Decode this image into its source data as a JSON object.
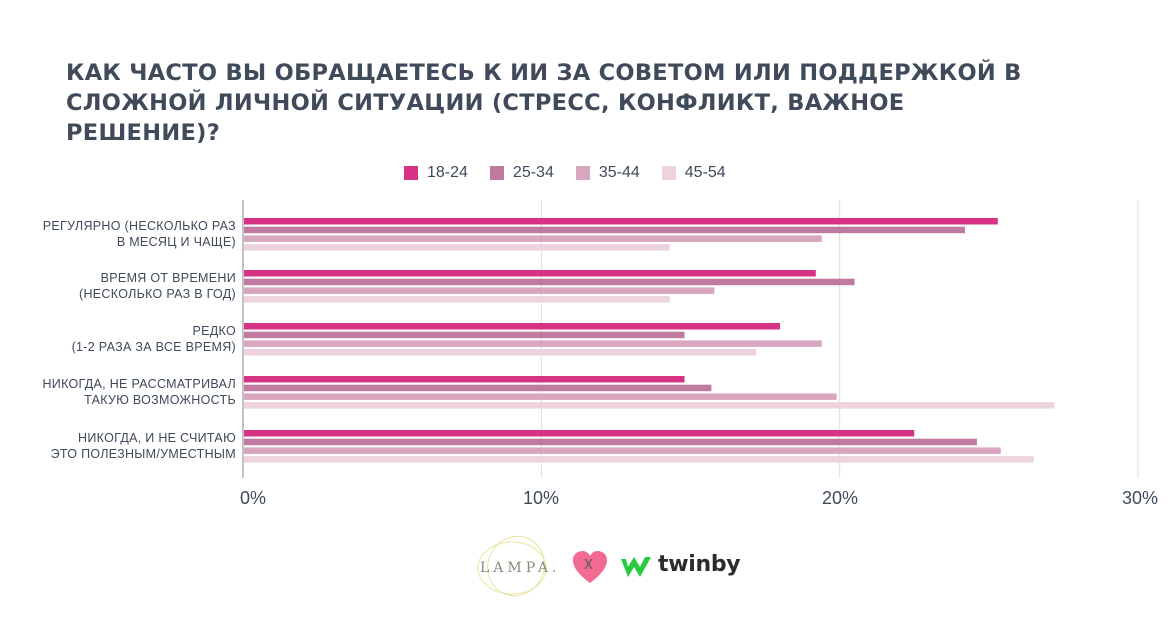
{
  "title_lines": [
    "КАК ЧАСТО ВЫ ОБРАЩАЕТЕСЬ К ИИ ЗА СОВЕТОМ ИЛИ ПОДДЕРЖКОЙ В",
    "СЛОЖНОЙ ЛИЧНОЙ СИТУАЦИИ (СТРЕСС, КОНФЛИКТ, ВАЖНОЕ РЕШЕНИЕ)?"
  ],
  "colors": {
    "text": "#3f4a5a",
    "grid": "#dcdcdc",
    "series": [
      "#d63384",
      "#c17a9f",
      "#d9a6c0",
      "#edd3de"
    ]
  },
  "chart_data": {
    "type": "bar",
    "orientation": "horizontal",
    "categories": [
      [
        "РЕГУЛЯРНО (НЕСКОЛЬКО РАЗ",
        "В МЕСЯЦ И ЧАЩЕ)"
      ],
      [
        "ВРЕМЯ ОТ ВРЕМЕНИ",
        "(НЕСКОЛЬКО РАЗ В ГОД)"
      ],
      [
        "РЕДКО",
        "(1-2 РАЗА ЗА ВСЕ ВРЕМЯ)"
      ],
      [
        "НИКОГДА, НЕ РАССМАТРИВАЛ",
        "ТАКУЮ ВОЗМОЖНОСТЬ"
      ],
      [
        "НИКОГДА, И НЕ СЧИТАЮ",
        "ЭТО ПОЛЕЗНЫМ/УМЕСТНЫМ"
      ]
    ],
    "series": [
      {
        "name": "18-24",
        "values": [
          25.3,
          19.2,
          18.0,
          14.8,
          22.5
        ]
      },
      {
        "name": "25-34",
        "values": [
          24.2,
          20.5,
          14.8,
          15.7,
          24.6
        ]
      },
      {
        "name": "35-44",
        "values": [
          19.4,
          15.8,
          19.4,
          19.9,
          25.4
        ]
      },
      {
        "name": "45-54",
        "values": [
          14.3,
          14.3,
          17.2,
          27.2,
          26.5
        ]
      }
    ],
    "xlim": [
      0,
      30
    ],
    "xticks": [
      {
        "value": 0,
        "label": "0%"
      },
      {
        "value": 10,
        "label": "10%"
      },
      {
        "value": 20,
        "label": "20%"
      },
      {
        "value": 30,
        "label": "30%"
      }
    ],
    "grid": true,
    "legend": "top"
  },
  "footer": {
    "lampa_logo_text": "LAMPA.",
    "separator": "X",
    "twinby_text": "twinby"
  }
}
